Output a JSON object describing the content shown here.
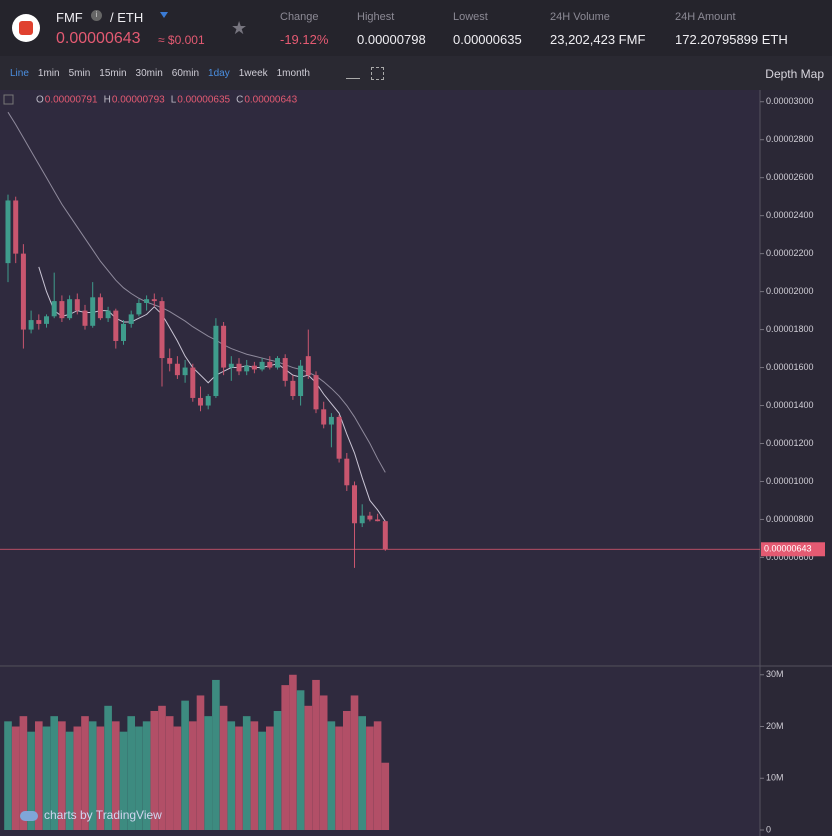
{
  "header": {
    "pair_base": "FMF",
    "pair_quote": "/ ETH",
    "price": "0.00000643",
    "price_usd": "≈ $0.001",
    "stats": [
      {
        "label": "Change",
        "value": "-19.12%"
      },
      {
        "label": "Highest",
        "value": "0.00000798"
      },
      {
        "label": "Lowest",
        "value": "0.00000635"
      },
      {
        "label": "24H Volume",
        "value": "23,202,423 FMF"
      },
      {
        "label": "24H Amount",
        "value": "172.20795899 ETH"
      }
    ]
  },
  "toolbar": {
    "intervals": [
      "Line",
      "1min",
      "5min",
      "15min",
      "30min",
      "60min",
      "1day",
      "1week",
      "1month"
    ],
    "active_index": 6,
    "depth": "Depth Map"
  },
  "footer": "charts by TradingView",
  "chart_data": [
    {
      "type": "candlestick",
      "up_color": "#3f9c8c",
      "down_color": "#c9566f",
      "legend": [
        {
          "key": "O",
          "value": "0.00000791"
        },
        {
          "key": "H",
          "value": "0.00000793"
        },
        {
          "key": "L",
          "value": "0.00000635"
        },
        {
          "key": "C",
          "value": "0.00000643"
        }
      ],
      "open": [
        2.15e-05,
        2.48e-05,
        2.2e-05,
        1.8e-05,
        1.85e-05,
        1.83e-05,
        1.87e-05,
        1.95e-05,
        1.86e-05,
        1.96e-05,
        1.9e-05,
        1.82e-05,
        1.97e-05,
        1.86e-05,
        1.9e-05,
        1.74e-05,
        1.83e-05,
        1.88e-05,
        1.94e-05,
        1.96e-05,
        1.95e-05,
        1.65e-05,
        1.62e-05,
        1.56e-05,
        1.6e-05,
        1.44e-05,
        1.4e-05,
        1.45e-05,
        1.82e-05,
        1.6e-05,
        1.62e-05,
        1.58e-05,
        1.61e-05,
        1.59e-05,
        1.63e-05,
        1.6e-05,
        1.65e-05,
        1.53e-05,
        1.45e-05,
        1.66e-05,
        1.56e-05,
        1.38e-05,
        1.3e-05,
        1.34e-05,
        1.12e-05,
        9.8e-06,
        7.8e-06,
        8.2e-06,
        8e-06,
        7.91e-06
      ],
      "high": [
        2.511e-05,
        2.5e-05,
        2.25e-05,
        1.9e-05,
        1.88e-05,
        1.88e-05,
        2.1e-05,
        1.98e-05,
        1.98e-05,
        1.99e-05,
        1.93e-05,
        2.05e-05,
        1.99e-05,
        1.92e-05,
        1.91e-05,
        1.85e-05,
        1.9e-05,
        1.96e-05,
        1.98e-05,
        1.99e-05,
        1.97e-05,
        1.7e-05,
        1.66e-05,
        1.64e-05,
        1.62e-05,
        1.5e-05,
        1.46e-05,
        1.86e-05,
        1.84e-05,
        1.66e-05,
        1.65e-05,
        1.64e-05,
        1.63e-05,
        1.65e-05,
        1.66e-05,
        1.66e-05,
        1.67e-05,
        1.56e-05,
        1.64e-05,
        1.8e-05,
        1.58e-05,
        1.42e-05,
        1.36e-05,
        1.35e-05,
        1.15e-05,
        1e-05,
        8.8e-06,
        8.4e-06,
        8.3e-06,
        7.93e-06
      ],
      "low": [
        2.05e-05,
        2.15e-05,
        1.7e-05,
        1.78e-05,
        1.8e-05,
        1.81e-05,
        1.86e-05,
        1.84e-05,
        1.85e-05,
        1.88e-05,
        1.8e-05,
        1.81e-05,
        1.85e-05,
        1.84e-05,
        1.7e-05,
        1.72e-05,
        1.81e-05,
        1.87e-05,
        1.9e-05,
        1.92e-05,
        1.5e-05,
        1.58e-05,
        1.54e-05,
        1.52e-05,
        1.42e-05,
        1.37e-05,
        1.38e-05,
        1.44e-05,
        1.56e-05,
        1.53e-05,
        1.56e-05,
        1.56e-05,
        1.57e-05,
        1.58e-05,
        1.59e-05,
        1.59e-05,
        1.5e-05,
        1.43e-05,
        1.4e-05,
        1.54e-05,
        1.36e-05,
        1.28e-05,
        1.18e-05,
        1.1e-05,
        9.5e-06,
        5.45e-06,
        7.6e-06,
        7.9e-06,
        7.9e-06,
        6.35e-06
      ],
      "close": [
        2.48e-05,
        2.2e-05,
        1.8e-05,
        1.85e-05,
        1.83e-05,
        1.87e-05,
        1.95e-05,
        1.86e-05,
        1.96e-05,
        1.9e-05,
        1.82e-05,
        1.97e-05,
        1.86e-05,
        1.9e-05,
        1.74e-05,
        1.83e-05,
        1.88e-05,
        1.94e-05,
        1.96e-05,
        1.95e-05,
        1.65e-05,
        1.62e-05,
        1.56e-05,
        1.6e-05,
        1.44e-05,
        1.4e-05,
        1.45e-05,
        1.82e-05,
        1.6e-05,
        1.62e-05,
        1.58e-05,
        1.61e-05,
        1.59e-05,
        1.63e-05,
        1.6e-05,
        1.65e-05,
        1.53e-05,
        1.45e-05,
        1.61e-05,
        1.56e-05,
        1.38e-05,
        1.3e-05,
        1.34e-05,
        1.12e-05,
        9.8e-06,
        7.8e-06,
        8.2e-06,
        8e-06,
        7.91e-06,
        6.43e-06
      ],
      "lines": [
        {
          "color": "#8f8a9c",
          "values": [
            2.945e-05,
            2.88e-05,
            2.81e-05,
            2.74e-05,
            2.67e-05,
            2.6e-05,
            2.53e-05,
            2.46e-05,
            2.4e-05,
            2.34e-05,
            2.28e-05,
            2.22e-05,
            2.16e-05,
            2.11e-05,
            2.06e-05,
            2.02e-05,
            1.99e-05,
            1.965e-05,
            1.945e-05,
            1.93e-05,
            1.915e-05,
            1.895e-05,
            1.87e-05,
            1.845e-05,
            1.815e-05,
            1.79e-05,
            1.765e-05,
            1.745e-05,
            1.72e-05,
            1.7e-05,
            1.685e-05,
            1.67e-05,
            1.66e-05,
            1.65e-05,
            1.64e-05,
            1.63e-05,
            1.615e-05,
            1.6e-05,
            1.59e-05,
            1.575e-05,
            1.555e-05,
            1.525e-05,
            1.49e-05,
            1.45e-05,
            1.4e-05,
            1.34e-05,
            1.27e-05,
            1.2e-05,
            1.12e-05,
            1.048e-05
          ]
        },
        {
          "color": "#c9c4d4",
          "values": [
            null,
            null,
            null,
            null,
            2.13e-05,
            2e-05,
            1.9e-05,
            1.87e-05,
            1.88e-05,
            1.9e-05,
            1.89e-05,
            1.89e-05,
            1.9e-05,
            1.9e-05,
            1.86e-05,
            1.84e-05,
            1.84e-05,
            1.86e-05,
            1.88e-05,
            1.92e-05,
            1.88e-05,
            1.81e-05,
            1.74e-05,
            1.66e-05,
            1.6e-05,
            1.56e-05,
            1.52e-05,
            1.56e-05,
            1.58e-05,
            1.6e-05,
            1.6e-05,
            1.61e-05,
            1.6e-05,
            1.6e-05,
            1.61e-05,
            1.62e-05,
            1.59e-05,
            1.56e-05,
            1.55e-05,
            1.56e-05,
            1.52e-05,
            1.46e-05,
            1.41e-05,
            1.36e-05,
            1.25e-05,
            1.15e-05,
            1.02e-05,
            9e-06,
            8.5e-06,
            7.9e-06
          ]
        }
      ],
      "last_price": {
        "value": 6.43e-06,
        "label": "0.00000643"
      },
      "last_color": "#e45a72",
      "ylim": [
        4.4e-07,
        3.046e-05
      ],
      "yticks": [
        {
          "value": 6e-06,
          "label": "0.00000600"
        },
        {
          "value": 8e-06,
          "label": "0.00000800"
        },
        {
          "value": 1e-05,
          "label": "0.00001000"
        },
        {
          "value": 1.2e-05,
          "label": "0.00001200"
        },
        {
          "value": 1.4e-05,
          "label": "0.00001400"
        },
        {
          "value": 1.6e-05,
          "label": "0.00001600"
        },
        {
          "value": 1.8e-05,
          "label": "0.00001800"
        },
        {
          "value": 2e-05,
          "label": "0.00002000"
        },
        {
          "value": 2.2e-05,
          "label": "0.00002200"
        },
        {
          "value": 2.4e-05,
          "label": "0.00002400"
        },
        {
          "value": 2.6e-05,
          "label": "0.00002600"
        },
        {
          "value": 2.8e-05,
          "label": "0.00002800"
        },
        {
          "value": 3e-05,
          "label": "0.00003000"
        }
      ]
    },
    {
      "type": "volume",
      "values": [
        21000000,
        20000000,
        22000000,
        19000000,
        21000000,
        20000000,
        22000000,
        21000000,
        19000000,
        20000000,
        22000000,
        21000000,
        20000000,
        24000000,
        21000000,
        19000000,
        22000000,
        20000000,
        21000000,
        23000000,
        24000000,
        22000000,
        20000000,
        25000000,
        21000000,
        26000000,
        22000000,
        29000000,
        24000000,
        21000000,
        20000000,
        22000000,
        21000000,
        19000000,
        20000000,
        23000000,
        28000000,
        30000000,
        27000000,
        24000000,
        29000000,
        26000000,
        21000000,
        20000000,
        23000000,
        26000000,
        22000000,
        20000000,
        21000000,
        13000000
      ],
      "ylim": [
        0,
        31500000
      ],
      "yticks": [
        0,
        {
          "value": 10000000,
          "label": "10M"
        },
        {
          "value": 20000000,
          "label": "20M"
        },
        {
          "value": 30000000,
          "label": "30M"
        }
      ]
    }
  ]
}
